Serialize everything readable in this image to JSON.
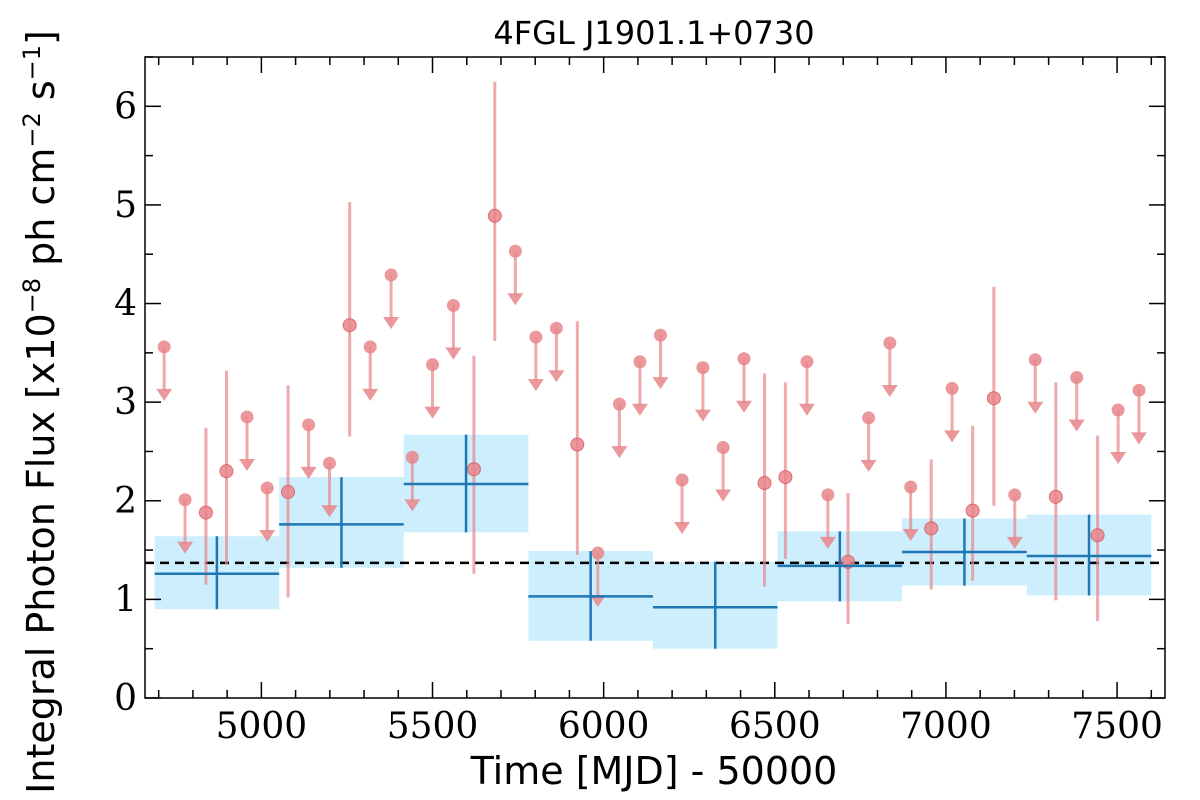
{
  "chart_data": {
    "type": "scatter",
    "title": "4FGL J1901.1+0730",
    "xlabel": "Time [MJD] - 50000",
    "ylabel": "Integral Photon Flux [x10$^{-8}$ ph cm$^{-2}$ s$^{-1}$]",
    "ylabel_parts": {
      "a": "Integral Photon Flux [x10",
      "b": "−8",
      "c": " ph cm",
      "d": "−2",
      "e": " s",
      "f": "−1",
      "g": "]"
    },
    "xlim": [
      4660,
      7640
    ],
    "ylim": [
      0,
      6.5
    ],
    "x_ticks": [
      5000,
      5500,
      6000,
      6500,
      7000,
      7500
    ],
    "x_tick_labels": [
      "5000",
      "5500",
      "6000",
      "6500",
      "7000",
      "7500"
    ],
    "y_ticks": [
      0,
      1,
      2,
      3,
      4,
      5,
      6
    ],
    "y_tick_labels": [
      "0",
      "1",
      "2",
      "3",
      "4",
      "5",
      "6"
    ],
    "mean_flux": 1.37,
    "colors": {
      "short_bins": "#e8868b",
      "long_bins": "#1f77b4",
      "long_band": "#cdeefc",
      "mean_line": "#000000"
    },
    "long_bins": [
      {
        "x": 4870,
        "x_lo": 4688,
        "x_hi": 5052,
        "y": 1.26,
        "y_lo": 0.9,
        "y_hi": 1.64
      },
      {
        "x": 5234,
        "x_lo": 5052,
        "x_hi": 5416,
        "y": 1.76,
        "y_lo": 1.32,
        "y_hi": 2.24
      },
      {
        "x": 5598,
        "x_lo": 5416,
        "x_hi": 5780,
        "y": 2.17,
        "y_lo": 1.68,
        "y_hi": 2.67
      },
      {
        "x": 5962,
        "x_lo": 5780,
        "x_hi": 6144,
        "y": 1.03,
        "y_lo": 0.58,
        "y_hi": 1.49
      },
      {
        "x": 6326,
        "x_lo": 6144,
        "x_hi": 6508,
        "y": 0.92,
        "y_lo": 0.5,
        "y_hi": 1.38
      },
      {
        "x": 6690,
        "x_lo": 6508,
        "x_hi": 6872,
        "y": 1.34,
        "y_lo": 0.98,
        "y_hi": 1.69
      },
      {
        "x": 7054,
        "x_lo": 6872,
        "x_hi": 7236,
        "y": 1.48,
        "y_lo": 1.14,
        "y_hi": 1.82
      },
      {
        "x": 7418,
        "x_lo": 7236,
        "x_hi": 7600,
        "y": 1.44,
        "y_lo": 1.04,
        "y_hi": 1.86
      }
    ],
    "short_detections": [
      {
        "x": 4838,
        "y": 1.88,
        "y_lo": 1.15,
        "y_hi": 2.74
      },
      {
        "x": 4898,
        "y": 2.3,
        "y_lo": 1.35,
        "y_hi": 3.32
      },
      {
        "x": 5078,
        "y": 2.09,
        "y_lo": 1.02,
        "y_hi": 3.17
      },
      {
        "x": 5258,
        "y": 3.78,
        "y_lo": 2.65,
        "y_hi": 5.03
      },
      {
        "x": 5621,
        "y": 2.32,
        "y_lo": 1.26,
        "y_hi": 3.47
      },
      {
        "x": 5682,
        "y": 4.89,
        "y_lo": 3.62,
        "y_hi": 6.25
      },
      {
        "x": 5923,
        "y": 2.57,
        "y_lo": 1.45,
        "y_hi": 3.82
      },
      {
        "x": 6470,
        "y": 2.18,
        "y_lo": 1.13,
        "y_hi": 3.29
      },
      {
        "x": 6531,
        "y": 2.24,
        "y_lo": 1.41,
        "y_hi": 3.2
      },
      {
        "x": 6714,
        "y": 1.38,
        "y_lo": 0.75,
        "y_hi": 2.08
      },
      {
        "x": 6957,
        "y": 1.72,
        "y_lo": 1.1,
        "y_hi": 2.42
      },
      {
        "x": 7078,
        "y": 1.9,
        "y_lo": 1.19,
        "y_hi": 2.76
      },
      {
        "x": 7140,
        "y": 3.04,
        "y_lo": 1.95,
        "y_hi": 4.17
      },
      {
        "x": 7321,
        "y": 2.04,
        "y_lo": 0.99,
        "y_hi": 3.2
      },
      {
        "x": 7443,
        "y": 1.65,
        "y_lo": 0.78,
        "y_hi": 2.66
      }
    ],
    "short_upper_limits": [
      {
        "x": 4716,
        "y": 3.56
      },
      {
        "x": 4777,
        "y": 2.01
      },
      {
        "x": 4958,
        "y": 2.85
      },
      {
        "x": 5017,
        "y": 2.13
      },
      {
        "x": 5138,
        "y": 2.77
      },
      {
        "x": 5199,
        "y": 2.38
      },
      {
        "x": 5318,
        "y": 3.56
      },
      {
        "x": 5379,
        "y": 4.29
      },
      {
        "x": 5441,
        "y": 2.44
      },
      {
        "x": 5500,
        "y": 3.38
      },
      {
        "x": 5561,
        "y": 3.98
      },
      {
        "x": 5742,
        "y": 4.53
      },
      {
        "x": 5802,
        "y": 3.66
      },
      {
        "x": 5862,
        "y": 3.75
      },
      {
        "x": 5983,
        "y": 1.47
      },
      {
        "x": 6046,
        "y": 2.98
      },
      {
        "x": 6106,
        "y": 3.41
      },
      {
        "x": 6166,
        "y": 3.68
      },
      {
        "x": 6229,
        "y": 2.21
      },
      {
        "x": 6290,
        "y": 3.35
      },
      {
        "x": 6349,
        "y": 2.54
      },
      {
        "x": 6410,
        "y": 3.44
      },
      {
        "x": 6594,
        "y": 3.41
      },
      {
        "x": 6655,
        "y": 2.06
      },
      {
        "x": 6774,
        "y": 2.84
      },
      {
        "x": 6836,
        "y": 3.6
      },
      {
        "x": 6897,
        "y": 2.14
      },
      {
        "x": 7018,
        "y": 3.14
      },
      {
        "x": 7201,
        "y": 2.06
      },
      {
        "x": 7261,
        "y": 3.43
      },
      {
        "x": 7382,
        "y": 3.25
      },
      {
        "x": 7503,
        "y": 2.92
      },
      {
        "x": 7564,
        "y": 3.12
      }
    ]
  }
}
